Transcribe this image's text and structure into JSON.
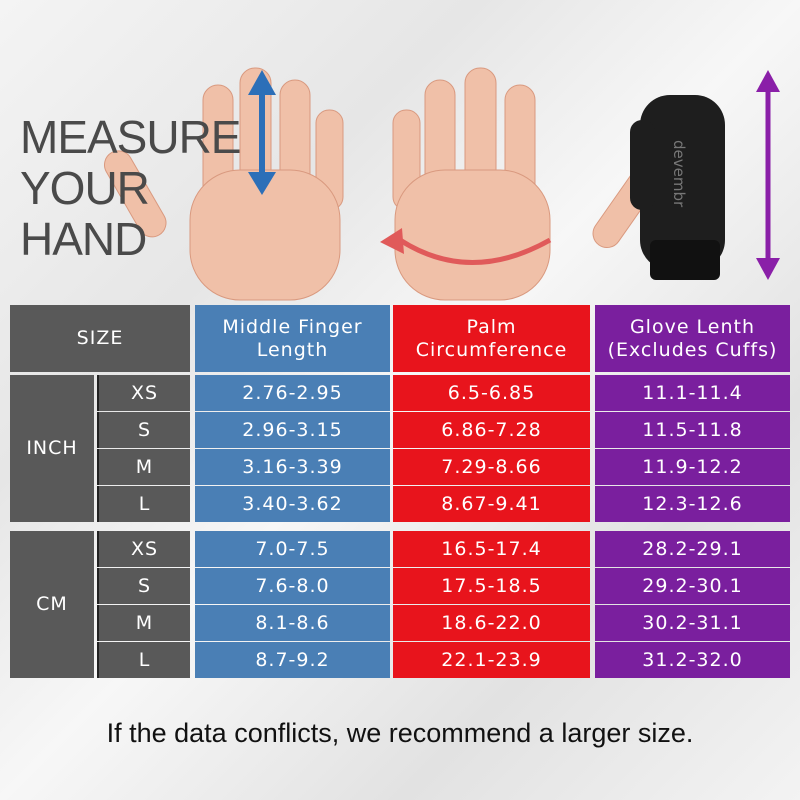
{
  "header": {
    "title_lines": [
      "MEASURE",
      "YOUR",
      "HAND"
    ],
    "glove_brand": "devembr"
  },
  "table": {
    "columns": [
      [
        "SIZE"
      ],
      [
        "Middle Finger",
        "Length"
      ],
      [
        "Palm",
        "Circumference"
      ],
      [
        "Glove Lenth",
        "(Excludes Cuffs)"
      ]
    ],
    "groups": [
      {
        "unit": "INCH",
        "rows": [
          [
            "XS",
            "2.76-2.95",
            "6.5-6.85",
            "11.1-11.4"
          ],
          [
            "S",
            "2.96-3.15",
            "6.86-7.28",
            "11.5-11.8"
          ],
          [
            "M",
            "3.16-3.39",
            "7.29-8.66",
            "11.9-12.2"
          ],
          [
            "L",
            "3.40-3.62",
            "8.67-9.41",
            "12.3-12.6"
          ]
        ]
      },
      {
        "unit": "CM",
        "rows": [
          [
            "XS",
            "7.0-7.5",
            "16.5-17.4",
            "28.2-29.1"
          ],
          [
            "S",
            "7.6-8.0",
            "17.5-18.5",
            "29.2-30.1"
          ],
          [
            "M",
            "8.1-8.6",
            "18.6-22.0",
            "30.2-31.1"
          ],
          [
            "L",
            "8.7-9.2",
            "22.1-23.9",
            "31.2-32.0"
          ]
        ]
      }
    ]
  },
  "footer": {
    "note": "If the data conflicts, we recommend a larger size."
  }
}
